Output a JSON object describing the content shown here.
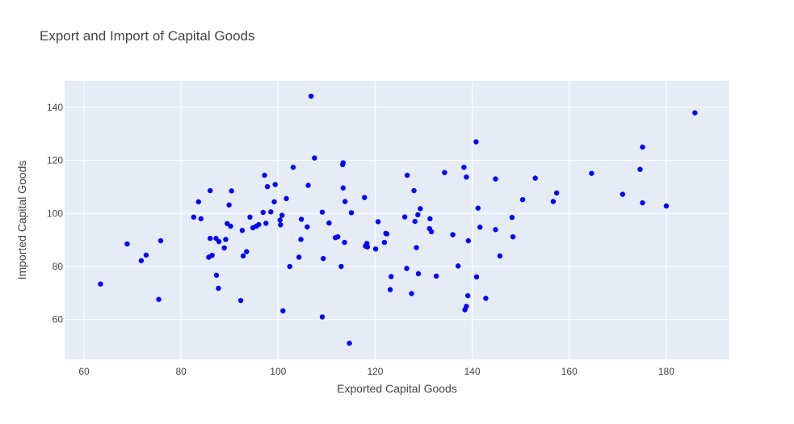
{
  "chart_data": {
    "type": "scatter",
    "title": "Export and Import of Capital Goods",
    "xlabel": "Exported Capital Goods",
    "ylabel": "Imported Capital Goods",
    "xlim": [
      56,
      193
    ],
    "ylim": [
      45,
      150
    ],
    "x_ticks": [
      60,
      80,
      100,
      120,
      140,
      160,
      180
    ],
    "y_ticks": [
      60,
      80,
      100,
      120,
      140
    ],
    "grid": true,
    "marker_color": "#0000ff",
    "plot_background": "#e5ecf6",
    "points": [
      [
        63.4,
        73.4
      ],
      [
        68.9,
        88.5
      ],
      [
        71.8,
        82.2
      ],
      [
        72.8,
        84.3
      ],
      [
        75.4,
        67.6
      ],
      [
        75.8,
        89.7
      ],
      [
        82.6,
        98.6
      ],
      [
        83.6,
        104.4
      ],
      [
        84.1,
        98.0
      ],
      [
        85.7,
        83.5
      ],
      [
        86.0,
        90.6
      ],
      [
        86.0,
        108.6
      ],
      [
        86.4,
        84.2
      ],
      [
        87.2,
        90.6
      ],
      [
        87.3,
        76.7
      ],
      [
        87.7,
        71.8
      ],
      [
        87.8,
        89.4
      ],
      [
        88.9,
        87.0
      ],
      [
        89.2,
        90.2
      ],
      [
        89.5,
        96.2
      ],
      [
        89.9,
        103.2
      ],
      [
        90.2,
        95.2
      ],
      [
        90.4,
        108.5
      ],
      [
        92.3,
        67.2
      ],
      [
        92.6,
        93.6
      ],
      [
        92.8,
        84.0
      ],
      [
        93.5,
        85.6
      ],
      [
        94.2,
        98.6
      ],
      [
        94.8,
        94.6
      ],
      [
        95.5,
        95.2
      ],
      [
        96.0,
        95.8
      ],
      [
        96.9,
        100.4
      ],
      [
        97.2,
        114.4
      ],
      [
        97.5,
        96.3
      ],
      [
        97.8,
        110.1
      ],
      [
        98.5,
        100.6
      ],
      [
        99.2,
        104.4
      ],
      [
        99.4,
        110.9
      ],
      [
        100.4,
        97.5
      ],
      [
        100.5,
        95.7
      ],
      [
        100.8,
        99.3
      ],
      [
        101.0,
        63.3
      ],
      [
        101.7,
        105.6
      ],
      [
        102.4,
        80.0
      ],
      [
        103.1,
        117.4
      ],
      [
        104.3,
        83.5
      ],
      [
        104.7,
        90.2
      ],
      [
        104.8,
        97.8
      ],
      [
        106.0,
        94.9
      ],
      [
        106.2,
        110.6
      ],
      [
        106.8,
        144.2
      ],
      [
        107.5,
        120.9
      ],
      [
        109.1,
        100.5
      ],
      [
        109.1,
        61.0
      ],
      [
        109.3,
        83.0
      ],
      [
        110.5,
        96.4
      ],
      [
        111.8,
        90.9
      ],
      [
        112.3,
        91.2
      ],
      [
        113.0,
        80.0
      ],
      [
        113.3,
        118.4
      ],
      [
        113.4,
        119.1
      ],
      [
        113.4,
        109.6
      ],
      [
        113.7,
        89.1
      ],
      [
        113.8,
        104.5
      ],
      [
        114.7,
        51.1
      ],
      [
        115.1,
        100.3
      ],
      [
        117.8,
        106.0
      ],
      [
        118.0,
        87.7
      ],
      [
        118.3,
        88.7
      ],
      [
        118.4,
        87.4
      ],
      [
        120.1,
        86.6
      ],
      [
        120.6,
        96.9
      ],
      [
        121.9,
        89.1
      ],
      [
        122.2,
        92.5
      ],
      [
        122.4,
        92.3
      ],
      [
        123.1,
        71.3
      ],
      [
        123.3,
        76.2
      ],
      [
        126.1,
        98.7
      ],
      [
        126.5,
        79.3
      ],
      [
        126.6,
        114.4
      ],
      [
        127.5,
        69.8
      ],
      [
        128.0,
        108.6
      ],
      [
        128.2,
        97.0
      ],
      [
        128.5,
        87.1
      ],
      [
        128.8,
        99.5
      ],
      [
        128.9,
        77.3
      ],
      [
        129.3,
        101.8
      ],
      [
        131.2,
        94.3
      ],
      [
        131.3,
        98.0
      ],
      [
        131.6,
        93.1
      ],
      [
        132.6,
        76.4
      ],
      [
        134.3,
        115.4
      ],
      [
        136.0,
        92.0
      ],
      [
        137.1,
        80.2
      ],
      [
        138.3,
        117.4
      ],
      [
        138.5,
        63.7
      ],
      [
        138.8,
        113.7
      ],
      [
        138.8,
        65.0
      ],
      [
        139.1,
        69.0
      ],
      [
        139.2,
        89.7
      ],
      [
        140.8,
        127.0
      ],
      [
        140.9,
        76.1
      ],
      [
        141.2,
        102.0
      ],
      [
        141.6,
        94.8
      ],
      [
        142.8,
        68.0
      ],
      [
        144.8,
        113.0
      ],
      [
        144.8,
        93.9
      ],
      [
        145.7,
        84.0
      ],
      [
        148.2,
        98.5
      ],
      [
        148.4,
        91.2
      ],
      [
        150.4,
        105.2
      ],
      [
        153.0,
        113.3
      ],
      [
        156.7,
        104.5
      ],
      [
        157.4,
        107.7
      ],
      [
        164.6,
        115.1
      ],
      [
        171.0,
        107.2
      ],
      [
        174.6,
        116.6
      ],
      [
        175.1,
        125.0
      ],
      [
        175.1,
        104.0
      ],
      [
        180.0,
        102.8
      ],
      [
        185.9,
        137.9
      ]
    ]
  }
}
